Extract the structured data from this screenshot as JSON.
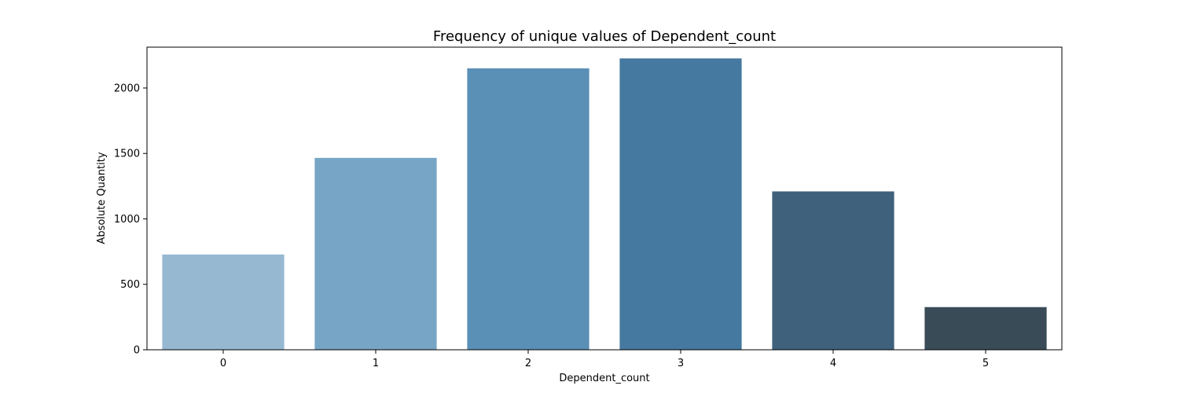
{
  "chart_data": {
    "type": "bar",
    "title": "Frequency of unique values of Dependent_count",
    "xlabel": "Dependent_count",
    "ylabel": "Absolute Quantity",
    "categories": [
      "0",
      "1",
      "2",
      "3",
      "4",
      "5"
    ],
    "values": [
      728,
      1466,
      2150,
      2226,
      1210,
      326
    ],
    "ylim": [
      0,
      2312
    ],
    "yticks": [
      "0",
      "500",
      "1000",
      "1500",
      "2000"
    ],
    "grid": false,
    "colors": [
      "#96b8d1",
      "#77a5c5",
      "#5a8fb6",
      "#46799f",
      "#40617b",
      "#3a4b58"
    ]
  }
}
